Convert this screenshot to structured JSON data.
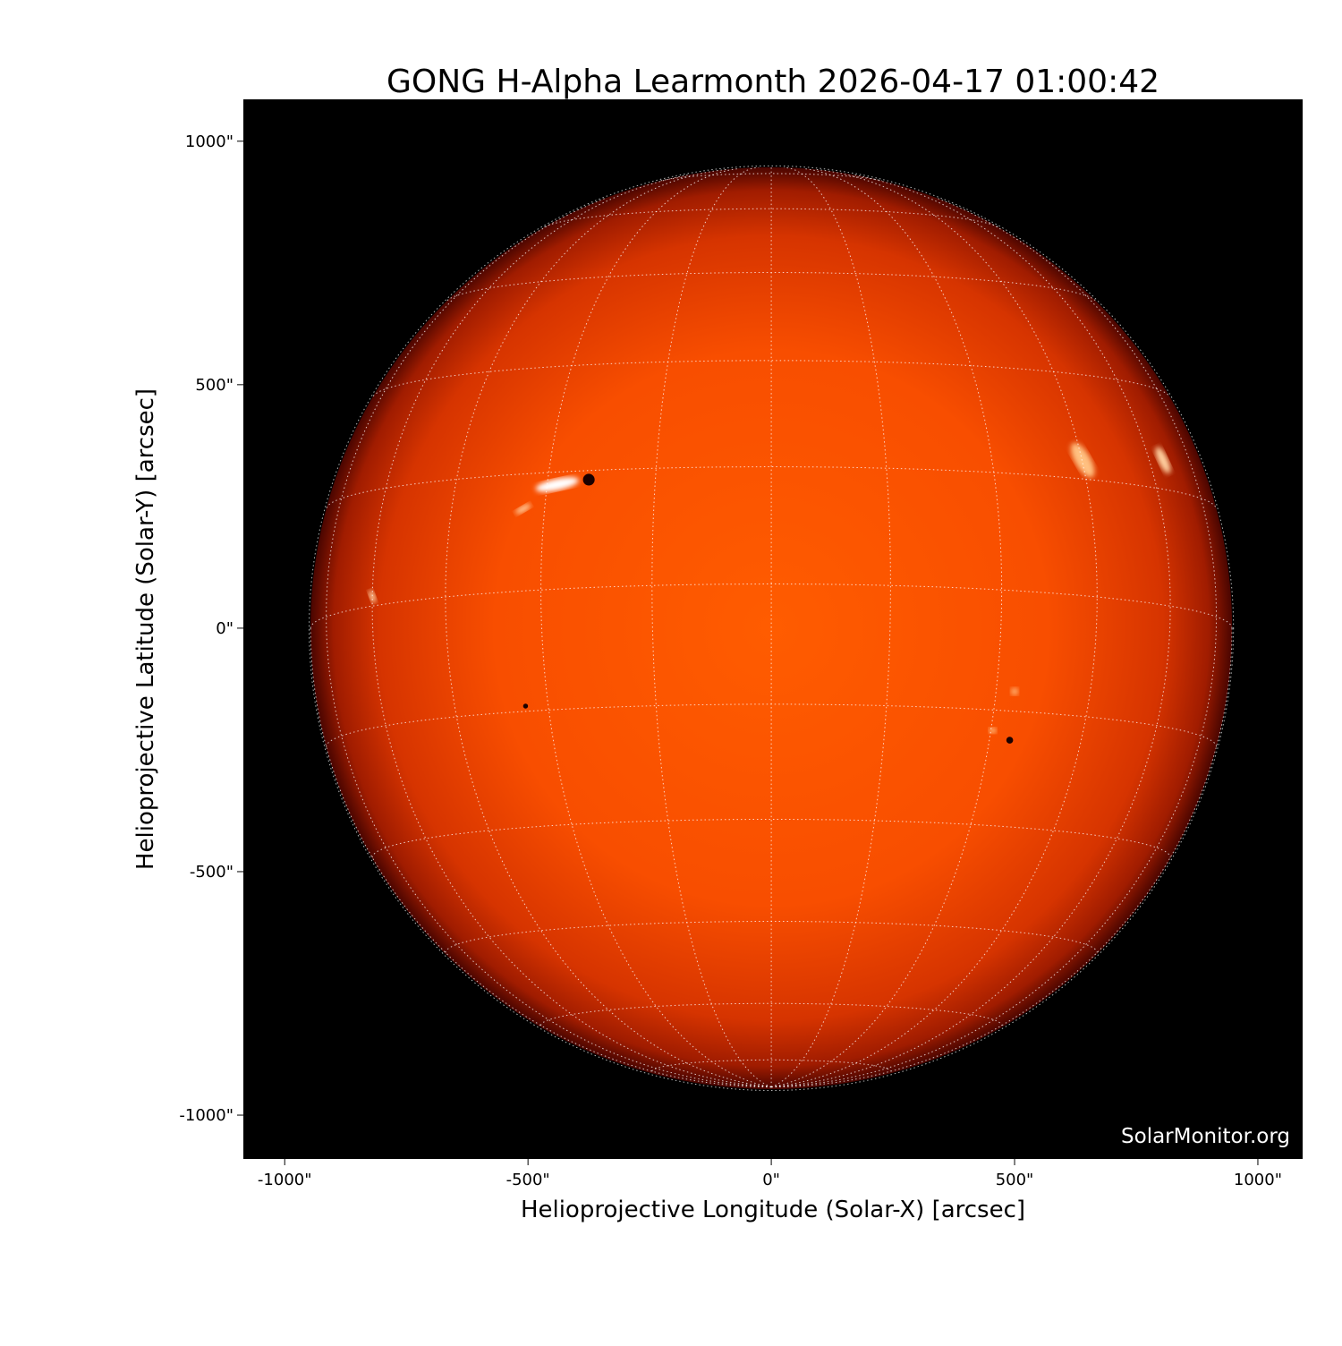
{
  "chart_data": {
    "type": "image",
    "title": "GONG H-Alpha Learmonth 2026-04-17 01:00:42",
    "xlabel": "Helioprojective Longitude (Solar-X) [arcsec]",
    "ylabel": "Helioprojective Latitude (Solar-Y) [arcsec]",
    "xlim": [
      -1085,
      1092
    ],
    "ylim": [
      -1090,
      1086
    ],
    "x_ticks": [
      {
        "value": -1000,
        "label": "-1000\""
      },
      {
        "value": -500,
        "label": "-500\""
      },
      {
        "value": 0,
        "label": "0\""
      },
      {
        "value": 500,
        "label": "500\""
      },
      {
        "value": 1000,
        "label": "1000\""
      }
    ],
    "y_ticks": [
      {
        "value": 1000,
        "label": "1000\""
      },
      {
        "value": 500,
        "label": "500\""
      },
      {
        "value": 0,
        "label": "0\""
      },
      {
        "value": -500,
        "label": "-500\""
      },
      {
        "value": -1000,
        "label": "-1000\""
      }
    ],
    "solar_radius_arcsec": 947,
    "grid": "heliographic, 15 degree spacing, dotted white",
    "colormap": "red-orange H-alpha",
    "colors": {
      "background": "#000000",
      "disk_center": "#ff5a00",
      "disk_limb": "#5a0800",
      "plage": "#ffffff",
      "grid": "#ffffff"
    },
    "watermark": "SolarMonitor.org"
  }
}
